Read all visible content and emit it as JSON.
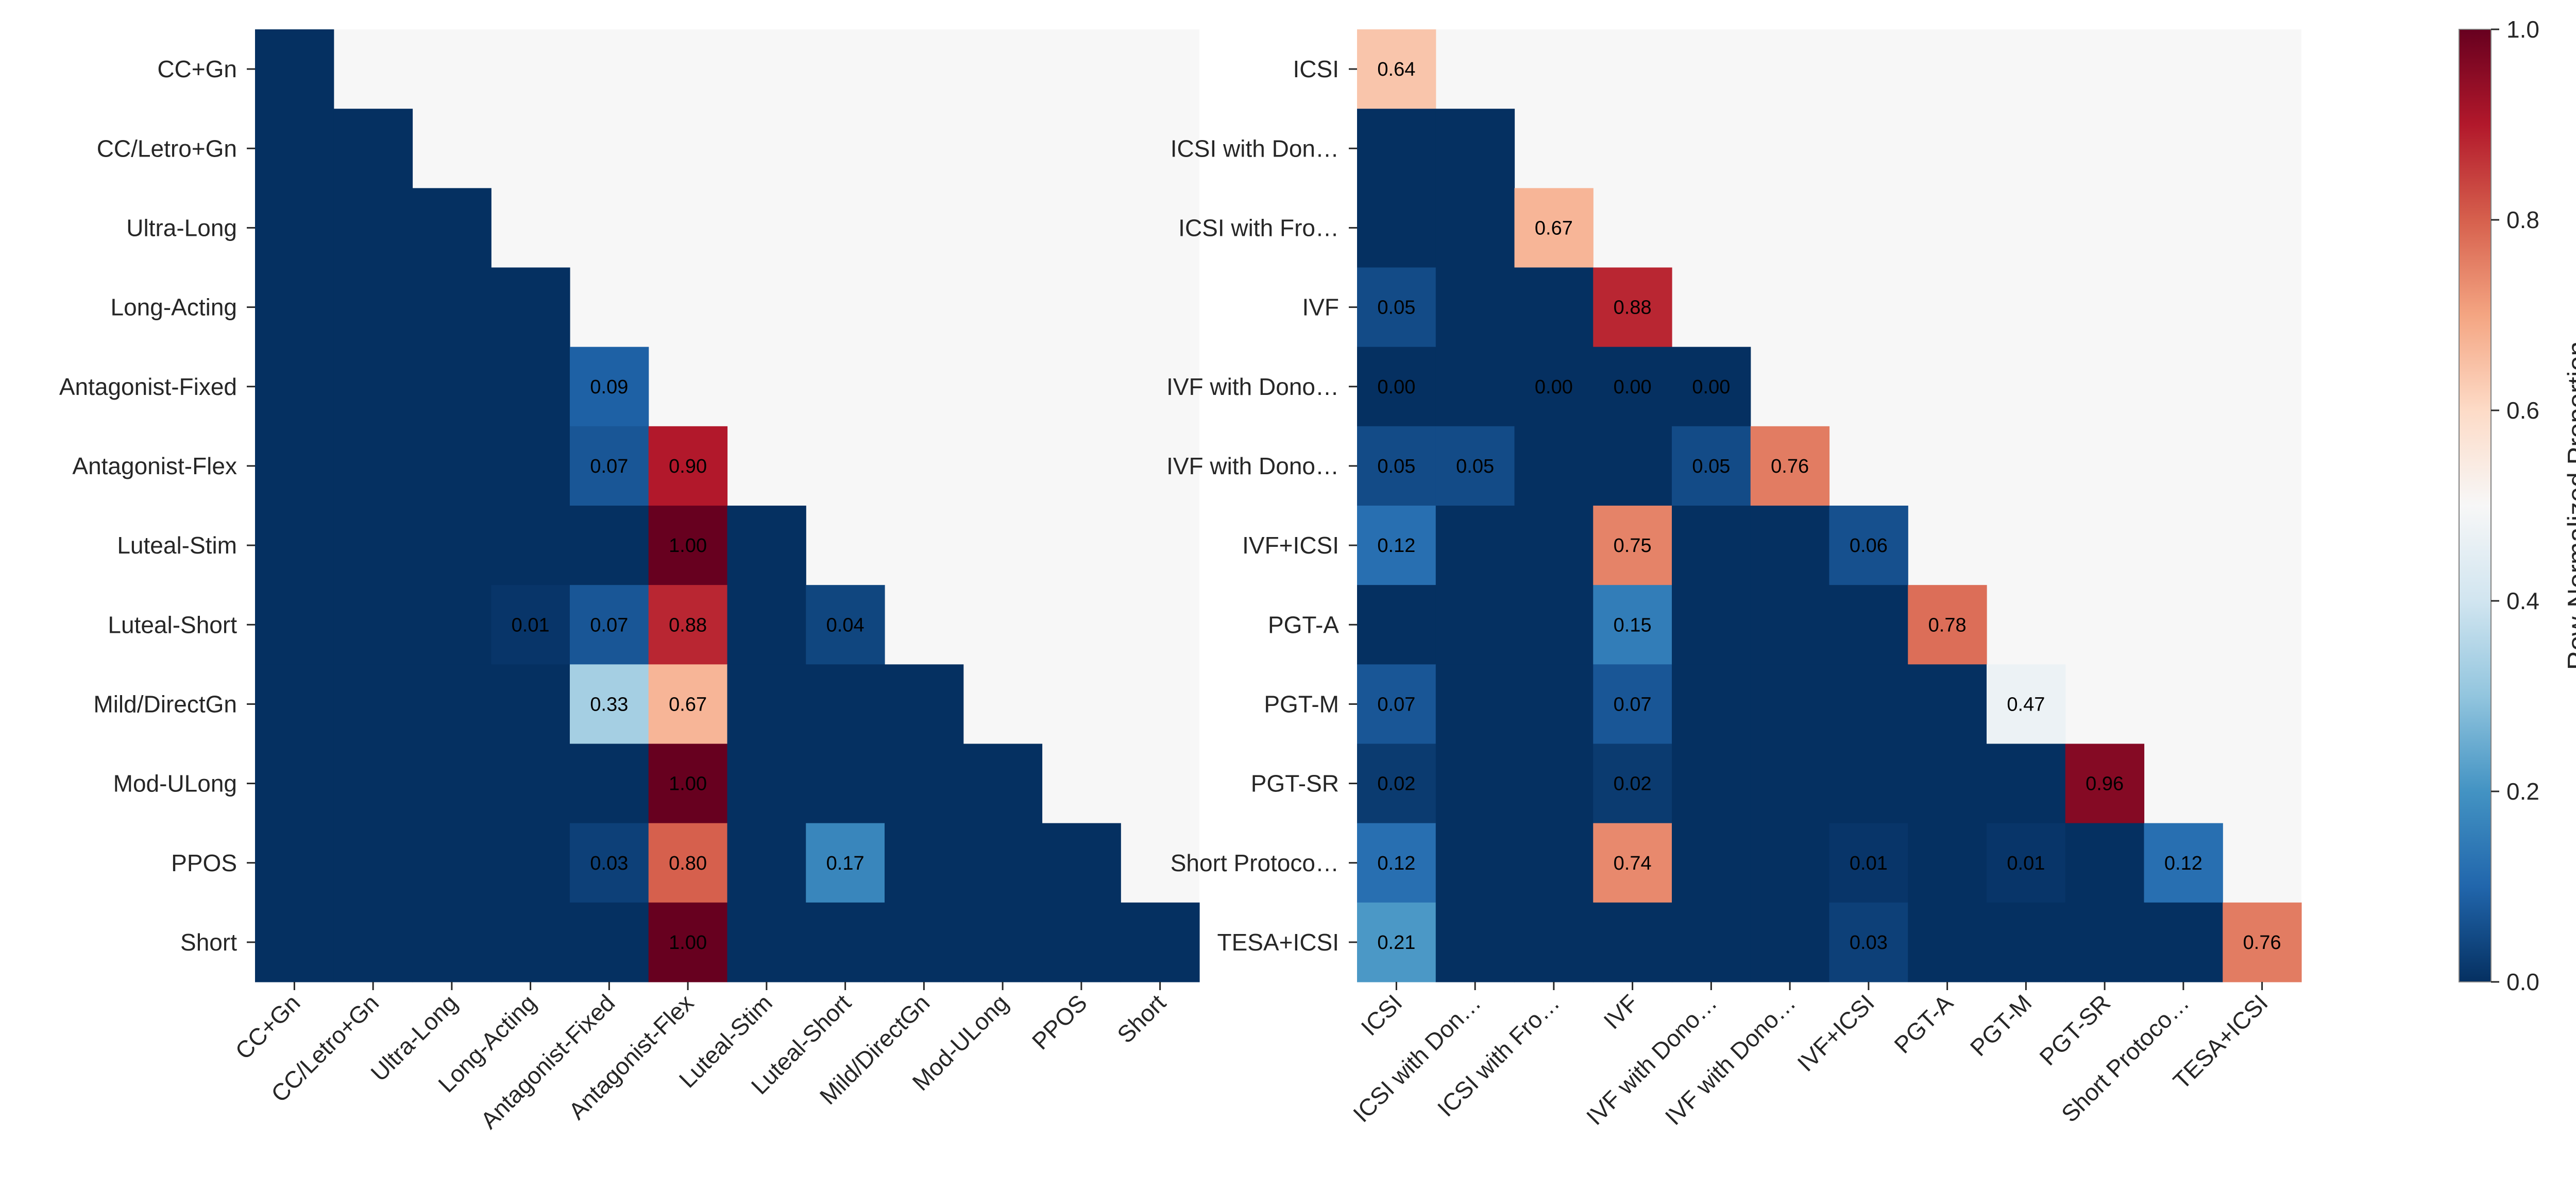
{
  "chart_data": [
    {
      "type": "heatmap",
      "title": "",
      "mask": "upper-triangle (cells with column index > row index are masked)",
      "categories": [
        "CC+Gn",
        "CC/Letro+Gn",
        "Ultra-Long",
        "Long-Acting",
        "Antagonist-Fixed",
        "Antagonist-Flex",
        "Luteal-Stim",
        "Luteal-Short",
        "Mild/DirectGn",
        "Mod-ULong",
        "PPOS",
        "Short"
      ],
      "values": [
        [
          0.0
        ],
        [
          0.0,
          0.0
        ],
        [
          0.0,
          0.0,
          0.0
        ],
        [
          0.0,
          0.0,
          0.0,
          0.0
        ],
        [
          0.0,
          0.0,
          0.0,
          0.0,
          0.09
        ],
        [
          0.0,
          0.0,
          0.0,
          0.0,
          0.07,
          0.9
        ],
        [
          0.0,
          0.0,
          0.0,
          0.0,
          0.0,
          1.0,
          0.0
        ],
        [
          0.0,
          0.0,
          0.0,
          0.01,
          0.07,
          0.88,
          0.0,
          0.04
        ],
        [
          0.0,
          0.0,
          0.0,
          0.0,
          0.33,
          0.67,
          0.0,
          0.0,
          0.0
        ],
        [
          0.0,
          0.0,
          0.0,
          0.0,
          0.0,
          1.0,
          0.0,
          0.0,
          0.0,
          0.0
        ],
        [
          0.0,
          0.0,
          0.0,
          0.0,
          0.03,
          0.8,
          0.0,
          0.17,
          0.0,
          0.0,
          0.0
        ],
        [
          0.0,
          0.0,
          0.0,
          0.0,
          0.0,
          1.0,
          0.0,
          0.0,
          0.0,
          0.0,
          0.0,
          0.0
        ]
      ],
      "annotations": [
        {
          "row": 4,
          "col": 4,
          "text": "0.09"
        },
        {
          "row": 5,
          "col": 4,
          "text": "0.07"
        },
        {
          "row": 5,
          "col": 5,
          "text": "0.90"
        },
        {
          "row": 6,
          "col": 5,
          "text": "1.00"
        },
        {
          "row": 7,
          "col": 3,
          "text": "0.01"
        },
        {
          "row": 7,
          "col": 4,
          "text": "0.07"
        },
        {
          "row": 7,
          "col": 5,
          "text": "0.88"
        },
        {
          "row": 7,
          "col": 7,
          "text": "0.04"
        },
        {
          "row": 8,
          "col": 4,
          "text": "0.33"
        },
        {
          "row": 8,
          "col": 5,
          "text": "0.67"
        },
        {
          "row": 9,
          "col": 5,
          "text": "1.00"
        },
        {
          "row": 10,
          "col": 4,
          "text": "0.03"
        },
        {
          "row": 10,
          "col": 5,
          "text": "0.80"
        },
        {
          "row": 10,
          "col": 7,
          "text": "0.17"
        },
        {
          "row": 11,
          "col": 5,
          "text": "1.00"
        }
      ]
    },
    {
      "type": "heatmap",
      "title": "",
      "mask": "upper-triangle (cells with column index > row index are masked)",
      "categories": [
        "ICSI",
        "ICSI with Don…",
        "ICSI with Fro…",
        "IVF",
        "IVF with Dono…",
        "IVF with Dono…",
        "IVF+ICSI",
        "PGT-A",
        "PGT-M",
        "PGT-SR",
        "Short Protoco…",
        "TESA+ICSI"
      ],
      "values": [
        [
          0.64
        ],
        [
          0.0,
          0.0
        ],
        [
          0.0,
          0.0,
          0.67
        ],
        [
          0.05,
          0.0,
          0.0,
          0.88
        ],
        [
          0.0,
          0.0,
          0.0,
          0.0,
          0.0
        ],
        [
          0.05,
          0.05,
          0.0,
          0.0,
          0.05,
          0.76
        ],
        [
          0.12,
          0.0,
          0.0,
          0.75,
          0.0,
          0.0,
          0.06
        ],
        [
          0.0,
          0.0,
          0.0,
          0.15,
          0.0,
          0.0,
          0.0,
          0.78
        ],
        [
          0.07,
          0.0,
          0.0,
          0.07,
          0.0,
          0.0,
          0.0,
          0.0,
          0.47
        ],
        [
          0.02,
          0.0,
          0.0,
          0.02,
          0.0,
          0.0,
          0.0,
          0.0,
          0.0,
          0.96
        ],
        [
          0.12,
          0.0,
          0.0,
          0.74,
          0.0,
          0.0,
          0.01,
          0.0,
          0.01,
          0.0,
          0.12
        ],
        [
          0.21,
          0.0,
          0.0,
          0.0,
          0.0,
          0.0,
          0.03,
          0.0,
          0.0,
          0.0,
          0.0,
          0.76
        ]
      ],
      "annotations": [
        {
          "row": 0,
          "col": 0,
          "text": "0.64"
        },
        {
          "row": 2,
          "col": 2,
          "text": "0.67"
        },
        {
          "row": 3,
          "col": 0,
          "text": "0.05"
        },
        {
          "row": 3,
          "col": 3,
          "text": "0.88"
        },
        {
          "row": 4,
          "col": 0,
          "text": "0.00"
        },
        {
          "row": 4,
          "col": 2,
          "text": "0.00"
        },
        {
          "row": 4,
          "col": 3,
          "text": "0.00"
        },
        {
          "row": 4,
          "col": 4,
          "text": "0.00"
        },
        {
          "row": 5,
          "col": 0,
          "text": "0.05"
        },
        {
          "row": 5,
          "col": 1,
          "text": "0.05"
        },
        {
          "row": 5,
          "col": 4,
          "text": "0.05"
        },
        {
          "row": 5,
          "col": 5,
          "text": "0.76"
        },
        {
          "row": 6,
          "col": 0,
          "text": "0.12"
        },
        {
          "row": 6,
          "col": 3,
          "text": "0.75"
        },
        {
          "row": 6,
          "col": 6,
          "text": "0.06"
        },
        {
          "row": 7,
          "col": 3,
          "text": "0.15"
        },
        {
          "row": 7,
          "col": 7,
          "text": "0.78"
        },
        {
          "row": 8,
          "col": 0,
          "text": "0.07"
        },
        {
          "row": 8,
          "col": 3,
          "text": "0.07"
        },
        {
          "row": 8,
          "col": 8,
          "text": "0.47"
        },
        {
          "row": 9,
          "col": 0,
          "text": "0.02"
        },
        {
          "row": 9,
          "col": 3,
          "text": "0.02"
        },
        {
          "row": 9,
          "col": 9,
          "text": "0.96"
        },
        {
          "row": 10,
          "col": 0,
          "text": "0.12"
        },
        {
          "row": 10,
          "col": 3,
          "text": "0.74"
        },
        {
          "row": 10,
          "col": 6,
          "text": "0.01"
        },
        {
          "row": 10,
          "col": 8,
          "text": "0.01"
        },
        {
          "row": 10,
          "col": 10,
          "text": "0.12"
        },
        {
          "row": 11,
          "col": 0,
          "text": "0.21"
        },
        {
          "row": 11,
          "col": 6,
          "text": "0.03"
        },
        {
          "row": 11,
          "col": 11,
          "text": "0.76"
        }
      ]
    }
  ],
  "colorbar": {
    "label": "Row-Normalized Proportion",
    "range": [
      0,
      1
    ],
    "ticks": [
      "0.0",
      "0.2",
      "0.4",
      "0.6",
      "0.8",
      "1.0"
    ],
    "colormap": "RdBu_r",
    "colors": [
      "#053061",
      "#2166ac",
      "#4393c3",
      "#92c5de",
      "#d1e5f0",
      "#f7f7f7",
      "#fddbc7",
      "#f4a582",
      "#d6604d",
      "#b2182b",
      "#67001f"
    ]
  },
  "mask_color": "#f7f7f7"
}
